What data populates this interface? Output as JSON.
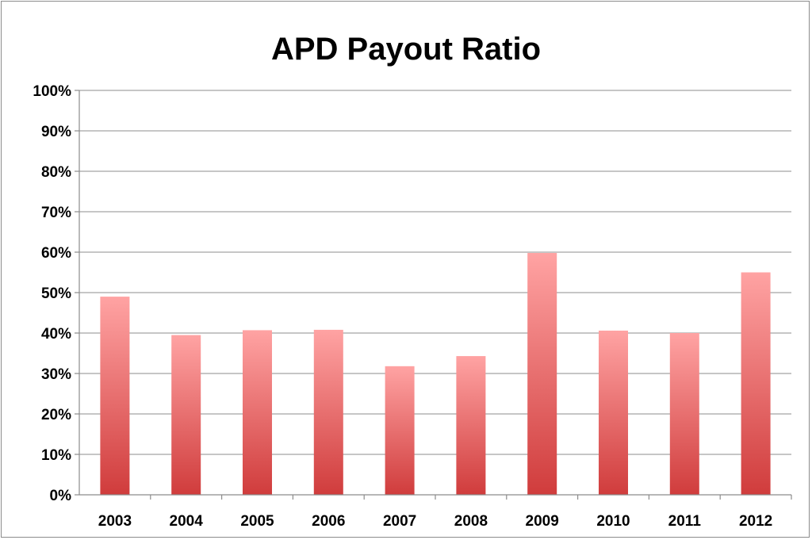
{
  "chart_data": {
    "type": "bar",
    "title": "APD Payout Ratio",
    "xlabel": "",
    "ylabel": "",
    "categories": [
      "2003",
      "2004",
      "2005",
      "2006",
      "2007",
      "2008",
      "2009",
      "2010",
      "2011",
      "2012"
    ],
    "values": [
      49,
      39.5,
      40.7,
      40.8,
      31.8,
      34.3,
      59.8,
      40.6,
      40,
      55
    ],
    "ylim": [
      0,
      100
    ],
    "yticks": [
      "0%",
      "10%",
      "20%",
      "30%",
      "40%",
      "50%",
      "60%",
      "70%",
      "80%",
      "90%",
      "100%"
    ],
    "grid": true,
    "legend": "none",
    "colors": {
      "bar_top": "#ffa3a3",
      "bar_bottom": "#d03c3c"
    }
  }
}
